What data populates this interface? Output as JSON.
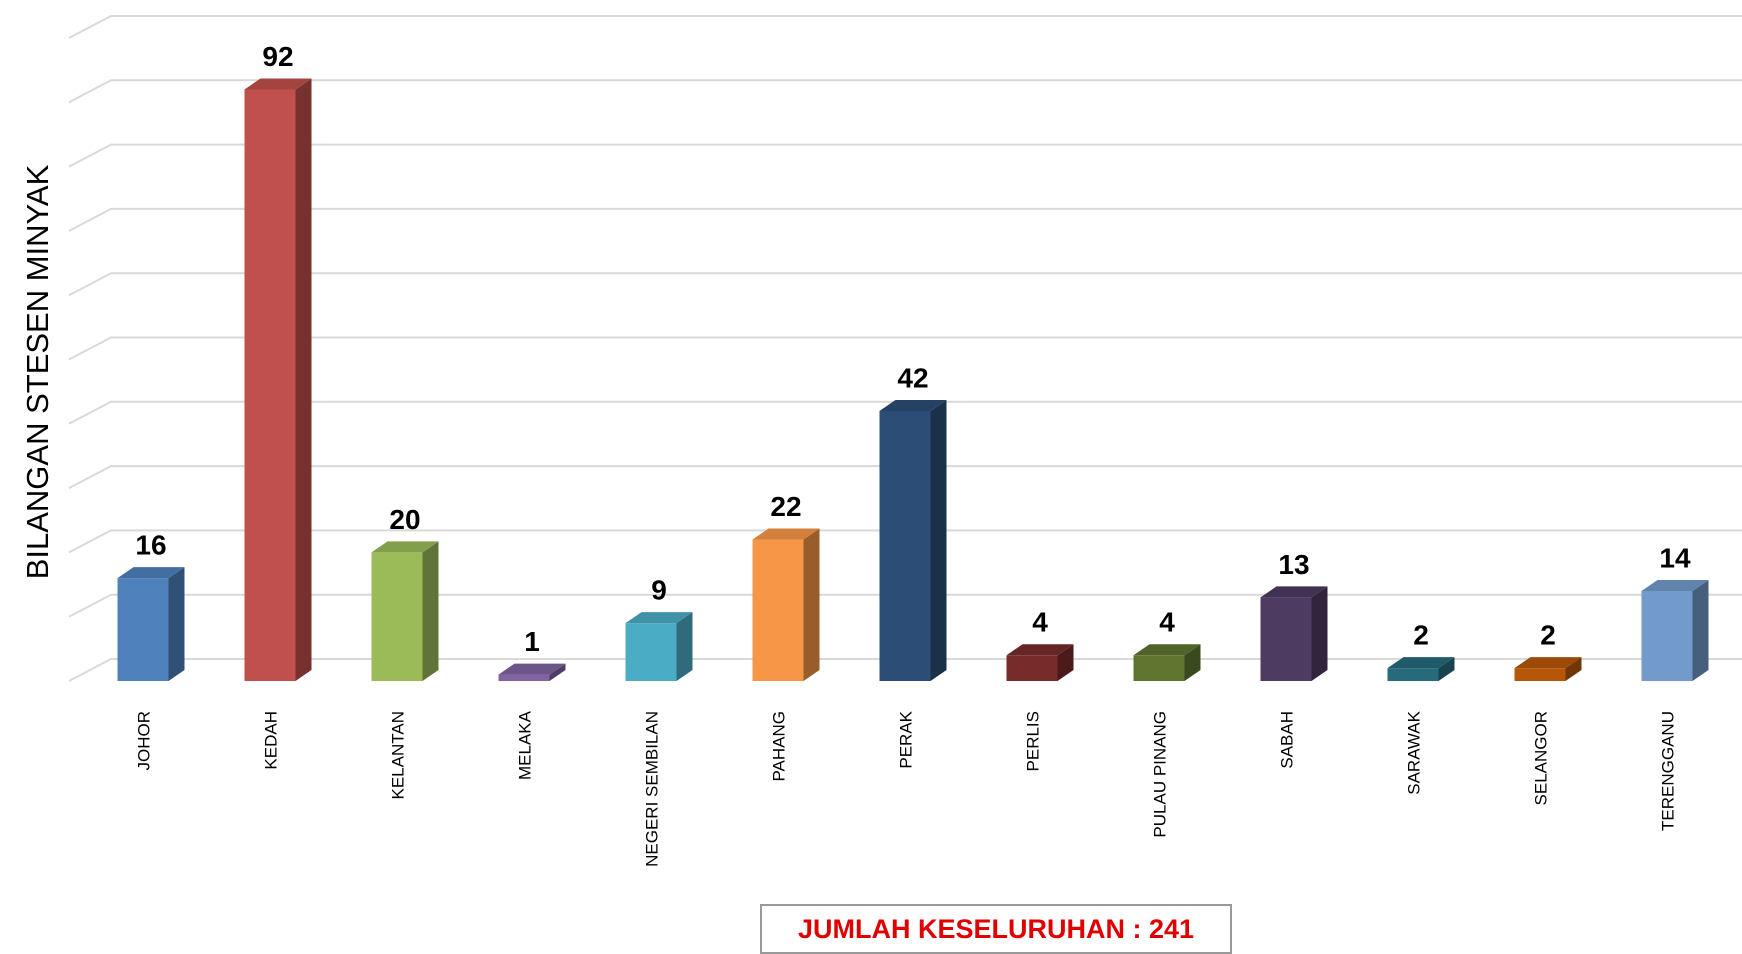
{
  "chart_data": {
    "type": "bar3d",
    "y_label": "BILANGAN STESEN MINYAK",
    "categories": [
      "JOHOR",
      "KEDAH",
      "KELANTAN",
      "MELAKA",
      "NEGERI SEMBILAN",
      "PAHANG",
      "PERAK",
      "PERLIS",
      "PULAU PINANG",
      "SABAH",
      "SARAWAK",
      "SELANGOR",
      "TERENGGANU"
    ],
    "values": [
      16,
      92,
      20,
      1,
      9,
      22,
      42,
      4,
      4,
      13,
      2,
      2,
      14
    ],
    "colors": [
      "#4f81bd",
      "#c0504d",
      "#9bbb59",
      "#8064a2",
      "#4bacc6",
      "#f79646",
      "#2c4d75",
      "#772c2a",
      "#5f7530",
      "#4d3b62",
      "#276a7c",
      "#b65708",
      "#729aca"
    ],
    "ylim": [
      0,
      100
    ],
    "yticks": [
      0,
      10,
      20,
      30,
      40,
      50,
      60,
      70,
      80,
      90,
      100
    ],
    "grid": true,
    "annotation": "JUMLAH KESELURUHAN : 241"
  }
}
